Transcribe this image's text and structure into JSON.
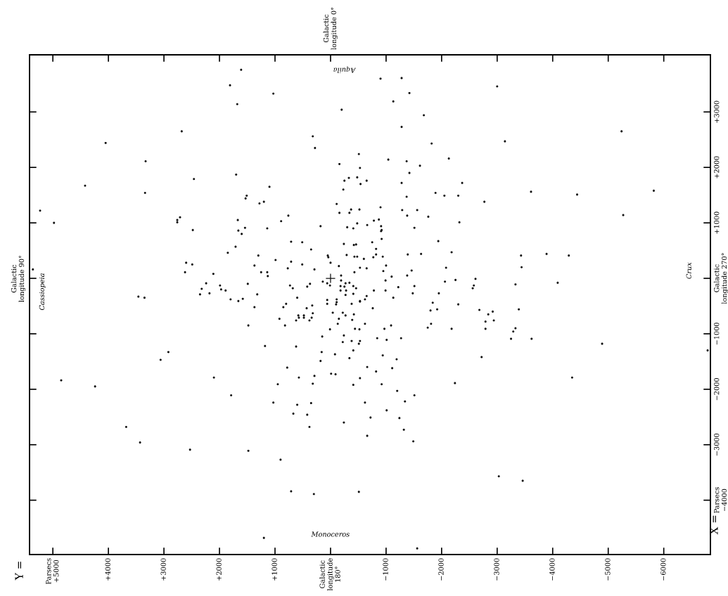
{
  "chart_data": {
    "type": "scatter",
    "ylabel": "X =",
    "annotations": [
      "Cassiopeia",
      "Aquila",
      "Crux",
      "Monoceros",
      "Galactic\nlongitude 0°",
      "Galactic\nlongitude 90°",
      "Y ="
    ],
    "xlim": [
      5420,
      -6840
    ],
    "ylim": [
      -4980,
      4030
    ],
    "xticks": [
      {
        "value": 5000,
        "label": "Parsecs\n+5000"
      },
      {
        "value": 4000,
        "label": "+4000"
      },
      {
        "value": 3000,
        "label": "+3000"
      },
      {
        "value": 2000,
        "label": "+2000"
      },
      {
        "value": 1000,
        "label": "+1000"
      },
      {
        "value": 0,
        "label": "Galactic\nlongitude\n180°"
      },
      {
        "value": -1000,
        "label": "−1000"
      },
      {
        "value": -2000,
        "label": "−2000"
      },
      {
        "value": -3000,
        "label": "−3000"
      },
      {
        "value": -4000,
        "label": "−4000"
      },
      {
        "value": -5000,
        "label": "−5000"
      },
      {
        "value": -6000,
        "label": "−6000"
      }
    ],
    "yticks": [
      {
        "value": 3000,
        "label": "+3000"
      },
      {
        "value": 2000,
        "label": "+2000"
      },
      {
        "value": 1000,
        "label": "+1000"
      },
      {
        "value": 0,
        "label": "Galactic\nlongitude 270°"
      },
      {
        "value": -1000,
        "label": "−1000"
      },
      {
        "value": -2000,
        "label": "−2000"
      },
      {
        "value": -3000,
        "label": "−3000"
      },
      {
        "value": -4000,
        "label": "Parsecs\n−4000"
      }
    ],
    "grid": false,
    "series": [
      {
        "color": "#111111",
        "marker": "circle",
        "x": [
          1610,
          1810,
          1680,
          2680,
          4050,
          3330,
          1700,
          2460,
          4420,
          3340,
          1510,
          1530,
          5230,
          4980,
          2710,
          2760,
          2760,
          1670,
          2480,
          1660,
          1540,
          1600,
          1710,
          1850,
          2600,
          2490,
          2620,
          2110,
          5360,
          1490,
          2240,
          2320,
          2350,
          2180,
          1990,
          1970,
          1890,
          1800,
          1660,
          1580,
          3460,
          3350,
          1480,
          2920,
          3060,
          4850,
          4240,
          2100,
          1790,
          3680,
          3430,
          2530,
          1480,
          -900,
          -1280,
          -1420,
          1030,
          -1130,
          -200,
          -1680,
          -1280,
          320,
          280,
          -1820,
          -510,
          -2130,
          -1040,
          -1370,
          -160,
          -1610,
          -530,
          -1420,
          -330,
          -250,
          -480,
          -650,
          -540,
          -230,
          1100,
          -1280,
          -2370,
          1280,
          1200,
          -1370,
          -1890,
          -2050,
          -2300,
          -2770,
          -110,
          -900,
          -370,
          -520,
          -340,
          -160,
          -1290,
          -1560,
          -1380,
          -1760,
          760,
          890,
          -2320,
          1140,
          180,
          -300,
          -410,
          -480,
          -660,
          -780,
          -870,
          -910,
          -920,
          -910,
          -1510,
          -920,
          -1940,
          710,
          510,
          -240,
          -420,
          -460,
          -750,
          350,
          -820,
          -2180,
          1300,
          50,
          40,
          -290,
          -430,
          -480,
          -600,
          -770,
          -820,
          -940,
          -1390,
          -1630,
          990,
          710,
          510,
          0,
          1370,
          -150,
          -530,
          -650,
          -1000,
          770,
          290,
          -950,
          1250,
          1140,
          1130,
          -430,
          -1460,
          -2080,
          -1380,
          -1100,
          -190,
          140,
          60,
          -190,
          -270,
          -340,
          730,
          680,
          420,
          370,
          10,
          -180,
          -250,
          -410,
          -460,
          -780,
          -990,
          -990,
          -1220,
          -1510,
          -2060,
          -2250,
          -2610,
          -2580,
          -2560,
          -1480,
          -1950,
          1320,
          600,
          -180,
          -280,
          -270,
          -410,
          -650,
          -1130,
          -110,
          -530,
          60,
          1370,
          850,
          800,
          430,
          330,
          60,
          -110,
          -100,
          -380,
          -530,
          -620,
          -760,
          920,
          820,
          620,
          580,
          570,
          480,
          480,
          380,
          340,
          320,
          -40,
          -150,
          -220,
          -270,
          -130,
          -390,
          -420,
          -620,
          10,
          -440,
          -520,
          -970,
          -1090,
          -240,
          150,
          -840,
          -1010,
          -1270,
          -220,
          -380,
          -530,
          -510,
          1180,
          620,
          160,
          -410,
          -80,
          -940,
          -340,
          -1190,
          180,
          780,
          -660,
          -820,
          -1110,
          -10,
          -90,
          570,
          290,
          -530,
          950,
          320,
          -410,
          -920,
          -1200,
          -1510,
          -1340,
          1030,
          600,
          350,
          -620,
          -1010,
          670,
          420,
          -720,
          -1240,
          -240,
          380,
          -1320,
          -660,
          -1490,
          900,
          710,
          300,
          -510,
          1200,
          -1560,
          -1840,
          -1800,
          -1920,
          -1810,
          -1750,
          -2300,
          -2180,
          -2680,
          -2840,
          -2790,
          -2720,
          -2240,
          -3000,
          -3140,
          -5240,
          -3610,
          -4440,
          -5820,
          -5270,
          -3430,
          -3890,
          -4290,
          -3440,
          -3330,
          -4090,
          -2920,
          -2940,
          -2790,
          -3390,
          -3330,
          -3290,
          -3250,
          -3620,
          -4890,
          -6790,
          -4350,
          -3030,
          -3460
        ],
        "values": [
          3760,
          3480,
          3140,
          2650,
          2440,
          2110,
          1870,
          1790,
          1670,
          1540,
          1490,
          1440,
          1220,
          1000,
          1100,
          1050,
          1010,
          1050,
          870,
          860,
          910,
          800,
          570,
          460,
          280,
          250,
          110,
          80,
          160,
          -100,
          -90,
          -190,
          -290,
          -270,
          -130,
          -200,
          -220,
          -380,
          -410,
          -370,
          -330,
          -350,
          -850,
          -1330,
          -1470,
          -1840,
          -1950,
          -1790,
          -2110,
          -2680,
          -2960,
          -3090,
          -3110,
          3600,
          3610,
          3340,
          3330,
          3190,
          3040,
          2940,
          2730,
          2560,
          2350,
          2430,
          2240,
          2160,
          2140,
          2110,
          2060,
          2030,
          1990,
          1900,
          1810,
          1760,
          1820,
          1760,
          1700,
          1600,
          1650,
          1720,
          1720,
          1350,
          1380,
          1470,
          1540,
          1490,
          1490,
          1380,
          1340,
          1280,
          1240,
          1240,
          1180,
          1180,
          1230,
          1230,
          1130,
          1110,
          1130,
          1030,
          1010,
          900,
          940,
          920,
          900,
          990,
          960,
          1040,
          1060,
          940,
          870,
          850,
          910,
          710,
          670,
          660,
          650,
          620,
          600,
          610,
          650,
          520,
          530,
          470,
          410,
          410,
          380,
          420,
          390,
          390,
          350,
          380,
          430,
          390,
          430,
          440,
          330,
          300,
          250,
          280,
          230,
          220,
          190,
          180,
          230,
          180,
          160,
          130,
          110,
          110,
          40,
          110,
          140,
          190,
          50,
          30,
          50,
          -60,
          -90,
          -40,
          -90,
          -80,
          -130,
          -180,
          -150,
          -100,
          -130,
          -140,
          -150,
          -140,
          -180,
          -220,
          -40,
          -220,
          -160,
          -140,
          -60,
          -30,
          -10,
          -130,
          -180,
          -270,
          -270,
          -290,
          -350,
          -220,
          -220,
          -300,
          -280,
          -320,
          -350,
          -380,
          -410,
          -390,
          -520,
          -520,
          -460,
          -540,
          -490,
          -460,
          -430,
          -470,
          -460,
          -420,
          -380,
          -540,
          -730,
          -850,
          -760,
          -670,
          -710,
          -670,
          -710,
          -760,
          -710,
          -630,
          -620,
          -730,
          -620,
          -670,
          -820,
          -750,
          -650,
          -820,
          -920,
          -910,
          -920,
          -910,
          -850,
          -1030,
          -1050,
          -1080,
          -1110,
          -1080,
          -1150,
          -1130,
          -1130,
          -1180,
          -1220,
          -1230,
          -1330,
          -1300,
          -1370,
          -1390,
          -1440,
          -1460,
          -1490,
          -1610,
          -1600,
          -1680,
          -1620,
          -1720,
          -1730,
          -1790,
          -1760,
          -1800,
          -1910,
          -1900,
          -1920,
          -1910,
          -2030,
          -2110,
          -2220,
          -2240,
          -2280,
          -2250,
          -2240,
          -2380,
          -2440,
          -2460,
          -2510,
          -2520,
          -2600,
          -2680,
          -2730,
          -2840,
          -2940,
          -3270,
          -3840,
          -3890,
          -3850,
          -4680,
          -4870,
          -440,
          -580,
          -560,
          -820,
          -890,
          -470,
          -910,
          -570,
          -650,
          -910,
          -1420,
          -1890,
          3460,
          2470,
          2650,
          1560,
          1510,
          1580,
          1140,
          410,
          440,
          410,
          200,
          -110,
          -80,
          -600,
          -760,
          -780,
          -560,
          -900,
          -960,
          -1090,
          -1090,
          -1180,
          -1300,
          -1790,
          -3570,
          -3650
        ]
      },
      {
        "color": "#111111",
        "marker": "cross",
        "x": [
          0
        ],
        "values": [
          0
        ]
      }
    ]
  }
}
